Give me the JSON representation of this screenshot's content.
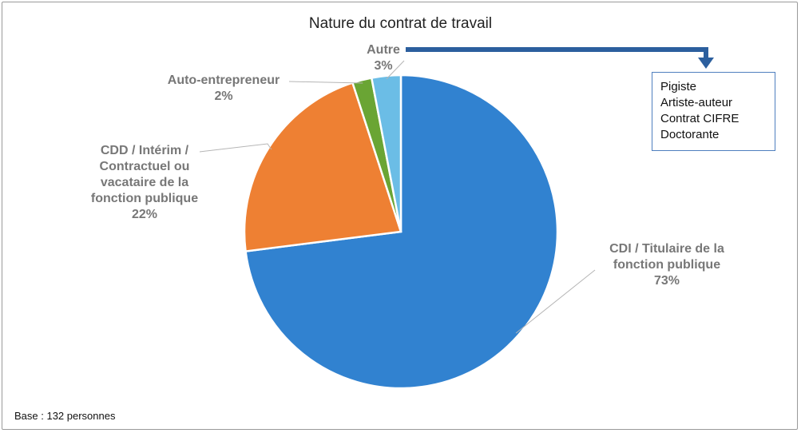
{
  "chart_data": {
    "type": "pie",
    "title": "Nature du contrat de travail",
    "slices": [
      {
        "label": "CDI / Titulaire de la fonction publique",
        "value": 73,
        "value_label": "73%",
        "color": "#3182d0"
      },
      {
        "label": "CDD / Intérim / Contractuel ou vacataire de la fonction publique",
        "value": 22,
        "value_label": "22%",
        "color": "#ee8033"
      },
      {
        "label": "Auto-entrepreneur",
        "value": 2,
        "value_label": "2%",
        "color": "#6aa534"
      },
      {
        "label": "Autre",
        "value": 3,
        "value_label": "3%",
        "color": "#6bbde6"
      }
    ],
    "label_lines": [
      "CDI / Titulaire de la\nfonction publique\n73%",
      "CDD / Intérim /\nContractuel ou\nvacataire de la\nfonction publique\n22%",
      "Auto-entrepreneur\n2%",
      "Autre\n3%"
    ],
    "annotation": {
      "items": [
        "Pigiste",
        "Artiste-auteur",
        "Contrat CIFRE",
        "Doctorante"
      ],
      "arrow_color": "#2c5f9e"
    },
    "base_note": "Base : 132 personnes"
  }
}
